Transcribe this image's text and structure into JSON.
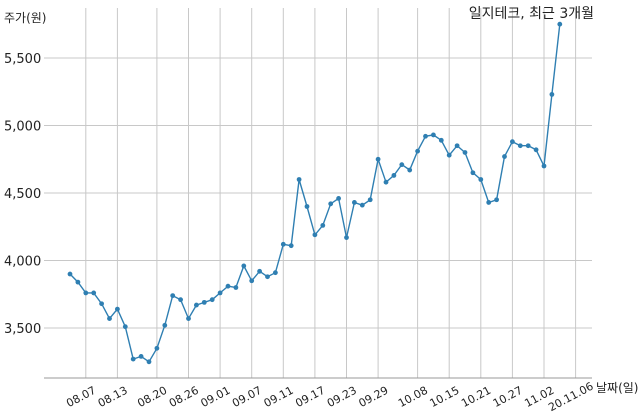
{
  "chart_data": {
    "type": "line",
    "title": "일지테크, 최근 3개월",
    "ylabel": "주가(원)",
    "xlabel": "날짜(일)",
    "ylim": [
      3130,
      5870
    ],
    "yticks": [
      3500,
      4000,
      4500,
      5000,
      5500
    ],
    "ytick_labels": [
      "3,500",
      "4,000",
      "4,500",
      "5,000",
      "5,500"
    ],
    "xtick_labels": [
      "08.07",
      "08.13",
      "08.20",
      "08.26",
      "09.01",
      "09.07",
      "09.11",
      "09.17",
      "09.23",
      "09.29",
      "10.08",
      "10.15",
      "10.21",
      "10.27",
      "11.02",
      "20.11.06"
    ],
    "xtick_index": [
      2,
      6,
      11,
      15,
      19,
      23,
      27,
      31,
      35,
      39,
      44,
      48,
      52,
      56,
      60,
      64
    ],
    "grid": true,
    "line_color": "#2f7fb2",
    "series": [
      {
        "values": [
          3900,
          3840,
          3760,
          3760,
          3680,
          3570,
          3640,
          3510,
          3270,
          3290,
          3250,
          3350,
          3520,
          3740,
          3710,
          3570,
          3670,
          3690,
          3710,
          3760,
          3810,
          3800,
          3960,
          3850,
          3920,
          3880,
          3910,
          4120,
          4110,
          4600,
          4400,
          4190,
          4260,
          4420,
          4460,
          4170,
          4430,
          4410,
          4450,
          4750,
          4580,
          4630,
          4710,
          4670,
          4810,
          4920,
          4930,
          4890,
          4780,
          4850,
          4800,
          4650,
          4600,
          4430,
          4450,
          4770,
          4880,
          4850,
          4850,
          4820,
          4700,
          5230,
          5750
        ]
      }
    ]
  }
}
